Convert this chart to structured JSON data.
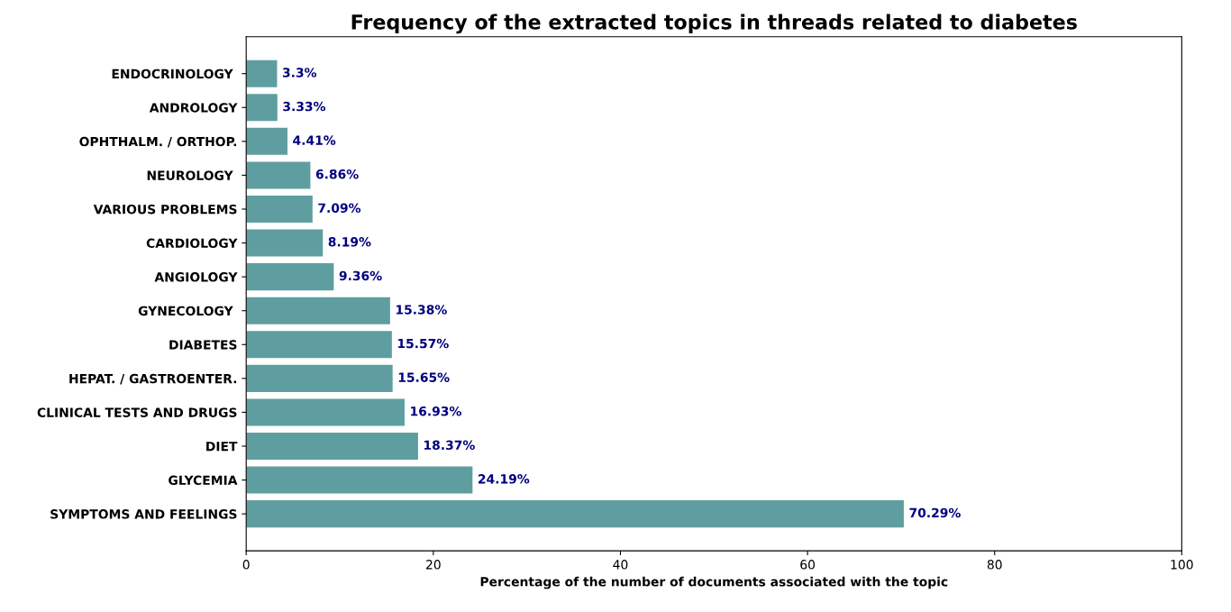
{
  "chart_data": {
    "type": "bar",
    "orientation": "horizontal",
    "title": "Frequency of the extracted topics in threads related to diabetes",
    "xlabel": "Percentage of the number of documents associated with the topic",
    "categories": [
      "ENDOCRINOLOGY ",
      "ANDROLOGY",
      "OPHTHALM. / ORTHOP.",
      "NEUROLOGY ",
      "VARIOUS PROBLEMS",
      "CARDIOLOGY",
      "ANGIOLOGY",
      "GYNECOLOGY ",
      "DIABETES",
      "HEPAT. / GASTROENTER.",
      "CLINICAL TESTS AND DRUGS",
      "DIET",
      "GLYCEMIA",
      "SYMPTOMS AND FEELINGS"
    ],
    "values": [
      3.3,
      3.33,
      4.41,
      6.86,
      7.09,
      8.19,
      9.36,
      15.38,
      15.57,
      15.65,
      16.93,
      18.37,
      24.19,
      70.29
    ],
    "value_labels": [
      "3.3%",
      "3.33%",
      "4.41%",
      "6.86%",
      "7.09%",
      "8.19%",
      "9.36%",
      "15.38%",
      "15.57%",
      "15.65%",
      "16.93%",
      "18.37%",
      "24.19%",
      "70.29%"
    ],
    "color": "#5f9ea0",
    "xlim": [
      0,
      100
    ],
    "xticks": [
      0,
      20,
      40,
      60,
      80,
      100
    ],
    "grid": false,
    "legend": false
  }
}
